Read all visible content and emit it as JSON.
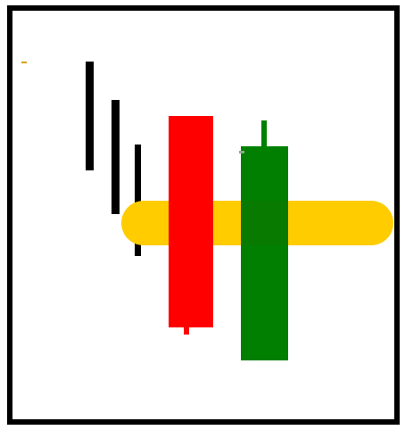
{
  "colors": {
    "frame": "#000000",
    "dark_bar": "#000000",
    "yellow_bar": "#ffcc00",
    "red_rect": "#ff0000",
    "green_rect": "#007f00",
    "overlap": "#087a00",
    "tick_mark": "#d8a000"
  },
  "shapes": [
    {
      "name": "frame",
      "color": "#000000"
    },
    {
      "name": "tick-mark",
      "color": "#d8a000"
    },
    {
      "name": "vertical-bar-1",
      "color": "#000000"
    },
    {
      "name": "vertical-bar-2",
      "color": "#000000"
    },
    {
      "name": "vertical-bar-3",
      "color": "#000000"
    },
    {
      "name": "yellow-horizontal-bar",
      "color": "#ffcc00"
    },
    {
      "name": "red-rectangle",
      "color": "#ff0000"
    },
    {
      "name": "red-stub",
      "color": "#ff0000"
    },
    {
      "name": "green-stem",
      "color": "#007f00"
    },
    {
      "name": "green-rectangle",
      "color": "#007f00"
    },
    {
      "name": "green-dot",
      "color": "#8fa68f"
    }
  ]
}
